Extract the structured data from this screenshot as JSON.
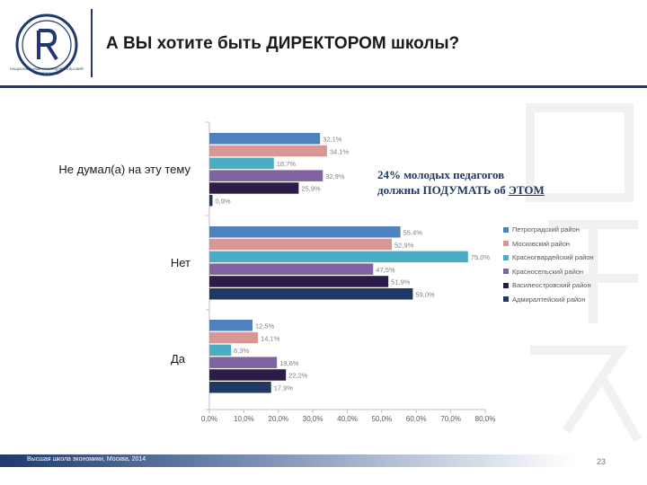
{
  "header": {
    "title": "А ВЫ хотите быть ДИРЕКТОРОМ школы?",
    "logo_caption": "НАЦИОНАЛЬНЫЙ ИССЛЕДОВАТЕЛЬСКИЙ УНИВЕРСИТЕТ",
    "accent_color": "#1e3a6e"
  },
  "footer": {
    "text": "Высшая школа экономики, Москва, 2014",
    "page_number": "23"
  },
  "annotation": {
    "line1": "24%  молодых педагогов",
    "line2_prefix": "должны ПОДУМАТЬ  об ",
    "line2_underlined": "ЭТОМ"
  },
  "chart_data": {
    "type": "bar",
    "orientation": "horizontal",
    "categories": [
      "Не думал(а) на эту тему",
      "Нет",
      "Да"
    ],
    "series": [
      {
        "name": "Петроградский район",
        "color": "#4f81bd",
        "values": [
          32.1,
          55.4,
          12.5
        ],
        "labels": [
          "32,1%",
          "55,4%",
          "12,5%"
        ]
      },
      {
        "name": "Московский район",
        "color": "#d99694",
        "values": [
          34.1,
          52.9,
          14.1
        ],
        "labels": [
          "34,1%",
          "52,9%",
          "14,1%"
        ]
      },
      {
        "name": "Красногвардейский район",
        "color": "#4bacc6",
        "values": [
          18.7,
          75.0,
          6.3
        ],
        "labels": [
          "18,7%",
          "75,0%",
          "6,3%"
        ]
      },
      {
        "name": "Красносельский район",
        "color": "#8064a2",
        "values": [
          32.9,
          47.5,
          19.6
        ],
        "labels": [
          "32,9%",
          "47,5%",
          "19,6%"
        ]
      },
      {
        "name": "Василеостровский район",
        "color": "#2b1c4a",
        "values": [
          25.9,
          51.9,
          22.2
        ],
        "labels": [
          "25,9%",
          "51,9%",
          "22,2%"
        ]
      },
      {
        "name": "Адмиралтейский район",
        "color": "#1f3864",
        "values": [
          0.9,
          59.0,
          17.9
        ],
        "labels": [
          "0,9%",
          "59,0%",
          "17,9%"
        ]
      }
    ],
    "xlim": [
      0,
      80
    ],
    "xticks": [
      "0,0%",
      "10,0%",
      "20,0%",
      "30,0%",
      "40,0%",
      "50,0%",
      "60,0%",
      "70,0%",
      "80,0%"
    ],
    "grid": false,
    "legend_position": "right"
  }
}
